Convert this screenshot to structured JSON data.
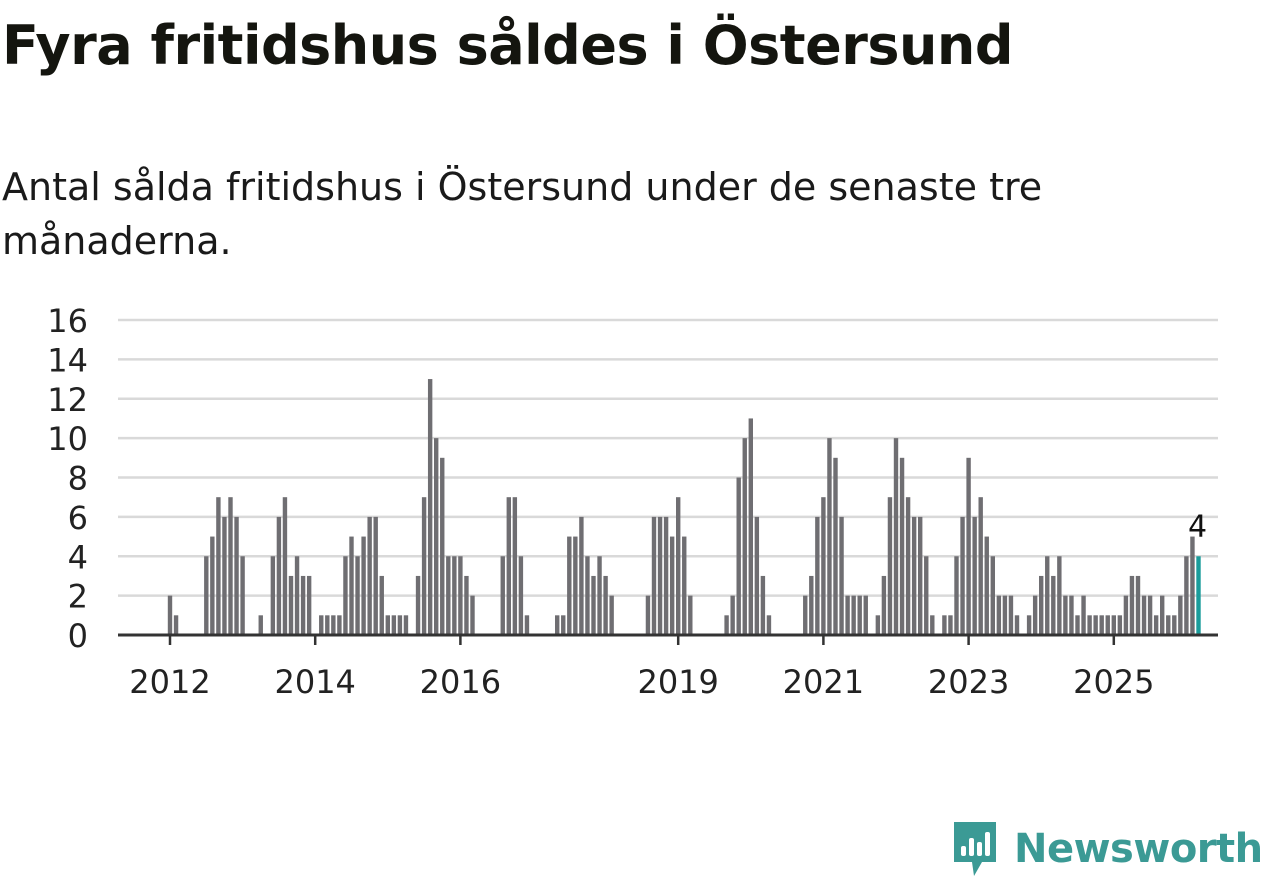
{
  "title": "Fyra fritidshus såldes i Östersund",
  "subtitle": "Antal sålda fritidshus i Östersund under de senaste tre månaderna.",
  "brand": {
    "name": "Newsworthy",
    "icon": "newsworthy-logo-icon"
  },
  "colors": {
    "bar": "#6f6e72",
    "highlight": "#1a9c9b",
    "grid": "#d9d9d9",
    "axis": "#333333",
    "brand": "#3b9a95"
  },
  "chart_data": {
    "type": "bar",
    "title": "Fyra fritidshus såldes i Östersund",
    "xlabel": "",
    "ylabel": "",
    "ylim": [
      0,
      16
    ],
    "yticks": [
      0,
      2,
      4,
      6,
      8,
      10,
      12,
      14,
      16
    ],
    "grid": true,
    "start_month": "2012-01",
    "x_tick_labels": [
      {
        "label": "2012",
        "index": 0
      },
      {
        "label": "2014",
        "index": 24
      },
      {
        "label": "2016",
        "index": 48
      },
      {
        "label": "2019",
        "index": 84
      },
      {
        "label": "2021",
        "index": 108
      },
      {
        "label": "2023",
        "index": 132
      },
      {
        "label": "2025",
        "index": 156
      }
    ],
    "values": [
      2,
      1,
      0,
      0,
      0,
      0,
      4,
      5,
      7,
      6,
      7,
      6,
      4,
      0,
      0,
      1,
      0,
      4,
      6,
      7,
      3,
      4,
      3,
      3,
      0,
      1,
      1,
      1,
      1,
      4,
      5,
      4,
      5,
      6,
      6,
      3,
      1,
      1,
      1,
      1,
      0,
      3,
      7,
      13,
      10,
      9,
      4,
      4,
      4,
      3,
      2,
      0,
      0,
      0,
      0,
      4,
      7,
      7,
      4,
      1,
      0,
      0,
      0,
      0,
      1,
      1,
      5,
      5,
      6,
      4,
      3,
      4,
      3,
      2,
      0,
      0,
      0,
      0,
      0,
      2,
      6,
      6,
      6,
      5,
      7,
      5,
      2,
      0,
      0,
      0,
      0,
      0,
      1,
      2,
      8,
      10,
      11,
      6,
      3,
      1,
      0,
      0,
      0,
      0,
      0,
      2,
      3,
      6,
      7,
      10,
      9,
      6,
      2,
      2,
      2,
      2,
      0,
      1,
      3,
      7,
      10,
      9,
      7,
      6,
      6,
      4,
      1,
      0,
      1,
      1,
      4,
      6,
      9,
      6,
      7,
      5,
      4,
      2,
      2,
      2,
      1,
      0,
      1,
      2,
      3,
      4,
      3,
      4,
      2,
      2,
      1,
      2,
      1,
      1,
      1,
      1,
      1,
      1,
      2,
      3,
      3,
      2,
      2,
      1,
      2,
      1,
      1,
      2,
      4,
      5,
      4
    ],
    "highlight": {
      "index": 170,
      "value": 4,
      "label": "4"
    }
  }
}
